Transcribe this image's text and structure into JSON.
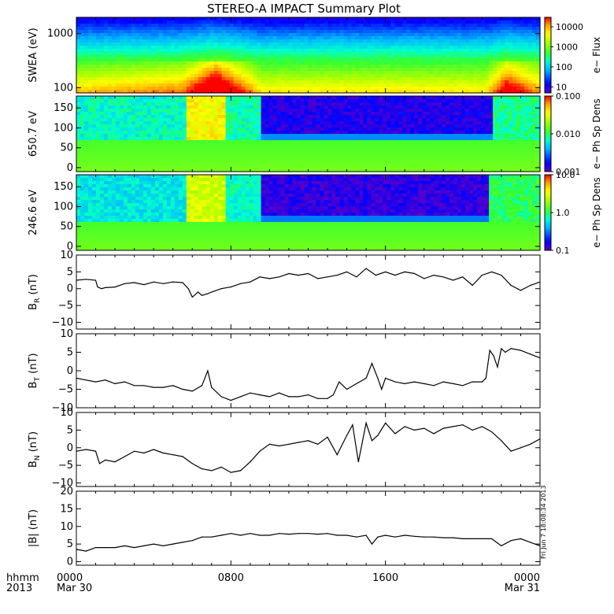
{
  "title": "STEREO-A IMPACT Summary Plot",
  "footer": {
    "left_top": "hhmm",
    "left_bottom": "2013",
    "date_start": "Mar 30",
    "date_end": "Mar 31"
  },
  "timestamp": "Fri Jun  7 18:08:34 2013",
  "colors": {
    "line": "#000000",
    "axis": "#000000"
  },
  "chart_data": [
    {
      "type": "heatmap",
      "id": "swea",
      "ylabel": "SWEA (eV)",
      "yscale": "log",
      "ylim": [
        80,
        2000
      ],
      "yticks": [
        100,
        1000
      ],
      "ytick_labels": [
        "100",
        "1000"
      ],
      "colorbar": {
        "label": "e− Flux",
        "scale": "log",
        "range": [
          5,
          30000
        ],
        "ticks": [
          10,
          100,
          1000,
          10000
        ],
        "tick_labels": [
          "10",
          "100",
          "1000",
          "10000"
        ]
      },
      "x_profile": [
        [
          0,
          1.0
        ],
        [
          5.5,
          1.1
        ],
        [
          7.2,
          1.45
        ],
        [
          8.4,
          1.2
        ],
        [
          9.6,
          0.95
        ],
        [
          21.2,
          0.95
        ],
        [
          22.3,
          1.3
        ],
        [
          24,
          1.05
        ]
      ]
    },
    {
      "type": "heatmap",
      "id": "pad650",
      "ylabel": "650.7 eV",
      "ylim": [
        -10,
        180
      ],
      "yticks": [
        0,
        50,
        100,
        150
      ],
      "ytick_labels": [
        "0",
        "50",
        "100",
        "150"
      ],
      "colorbar": {
        "label": "e− Ph Sp Dens",
        "scale": "log",
        "range": [
          0.001,
          0.1
        ],
        "ticks": [
          0.001,
          0.01,
          0.1
        ],
        "tick_labels": [
          "0.001",
          "0.010",
          "0.100"
        ]
      },
      "regions": [
        {
          "x": [
            0,
            5.6
          ],
          "level": 0.42
        },
        {
          "x": [
            5.6,
            7.8
          ],
          "level": 0.78
        },
        {
          "x": [
            7.8,
            9.5
          ],
          "level": 0.44
        },
        {
          "x": [
            9.5,
            21.6
          ],
          "level": 0.08
        },
        {
          "x": [
            21.6,
            24
          ],
          "level": 0.46
        }
      ]
    },
    {
      "type": "heatmap",
      "id": "pad246",
      "ylabel": "246.6 eV",
      "ylim": [
        -10,
        180
      ],
      "yticks": [
        0,
        50,
        100,
        150
      ],
      "ytick_labels": [
        "0",
        "50",
        "100",
        "150"
      ],
      "colorbar": {
        "label": "e− Ph Sp Dens",
        "scale": "log",
        "range": [
          0.1,
          10
        ],
        "ticks": [
          0.1,
          1,
          10
        ],
        "tick_labels": [
          "0.1",
          "1.0",
          "10.0"
        ]
      },
      "regions": [
        {
          "x": [
            0,
            5.6
          ],
          "level": 0.38
        },
        {
          "x": [
            5.6,
            7.8
          ],
          "level": 0.72
        },
        {
          "x": [
            7.8,
            9.5
          ],
          "level": 0.42
        },
        {
          "x": [
            9.5,
            21.4
          ],
          "level": 0.06
        },
        {
          "x": [
            21.4,
            24
          ],
          "level": 0.5
        }
      ]
    },
    {
      "type": "line",
      "id": "br",
      "ylabel": "B",
      "ylabel_sub": "R",
      "ylabel_unit": " (nT)",
      "ylim": [
        -12,
        10
      ],
      "yticks": [
        -10,
        -5,
        0,
        5,
        10
      ],
      "ytick_labels": [
        "−10",
        "−5",
        "0",
        "5",
        "10"
      ],
      "x": [
        0,
        0.5,
        1.0,
        1.1,
        1.3,
        1.5,
        2.0,
        2.5,
        3.0,
        3.5,
        4.0,
        4.5,
        5.0,
        5.5,
        5.8,
        6.0,
        6.3,
        6.5,
        6.8,
        7.0,
        7.5,
        8.0,
        8.5,
        9.0,
        9.5,
        10.0,
        10.5,
        11.0,
        11.5,
        12.0,
        12.5,
        13.0,
        13.5,
        14.0,
        14.5,
        15.0,
        15.5,
        16.0,
        16.5,
        17.0,
        17.5,
        18.0,
        18.5,
        19.0,
        19.5,
        20.0,
        20.5,
        21.0,
        21.5,
        22.0,
        22.5,
        23.0,
        23.5,
        24.0
      ],
      "y": [
        2.5,
        2.8,
        2.5,
        0.5,
        0.0,
        0.3,
        0.5,
        1.5,
        1.8,
        1.2,
        2.0,
        1.5,
        2.0,
        1.8,
        0.0,
        -2.5,
        -1.0,
        -2.0,
        -1.5,
        -1.0,
        0.0,
        0.5,
        1.5,
        2.0,
        3.5,
        3.0,
        3.5,
        4.5,
        4.0,
        4.5,
        3.0,
        3.5,
        4.0,
        5.0,
        3.5,
        6.0,
        4.0,
        5.0,
        4.0,
        5.0,
        4.5,
        3.0,
        4.0,
        3.5,
        2.5,
        3.5,
        1.0,
        4.0,
        5.0,
        4.0,
        1.0,
        -0.5,
        1.0,
        2.0
      ]
    },
    {
      "type": "line",
      "id": "bt",
      "ylabel": "B",
      "ylabel_sub": "T",
      "ylabel_unit": " (nT)",
      "ylim": [
        -10,
        10
      ],
      "yticks": [
        -10,
        -5,
        0,
        5,
        10
      ],
      "ytick_labels": [
        "−10",
        "−5",
        "0",
        "5",
        "10"
      ],
      "x": [
        0,
        0.5,
        1.0,
        1.5,
        2.0,
        2.5,
        3.0,
        3.5,
        4.0,
        4.5,
        5.0,
        5.5,
        6.0,
        6.5,
        6.8,
        7.0,
        7.5,
        8.0,
        8.5,
        9.0,
        9.5,
        10.0,
        10.5,
        11.0,
        11.5,
        12.0,
        12.5,
        13.0,
        13.3,
        13.6,
        13.8,
        14.0,
        14.5,
        15.0,
        15.3,
        15.6,
        15.8,
        16.0,
        16.5,
        17.0,
        17.5,
        18.0,
        18.5,
        19.0,
        19.5,
        20.0,
        20.5,
        21.0,
        21.2,
        21.4,
        21.6,
        21.8,
        22.0,
        22.2,
        22.5,
        23.0,
        23.5,
        24.0
      ],
      "y": [
        -2.0,
        -2.5,
        -3.0,
        -2.5,
        -3.5,
        -3.0,
        -4.0,
        -4.0,
        -4.5,
        -4.5,
        -4.0,
        -5.0,
        -5.5,
        -4.0,
        0.0,
        -4.5,
        -7.0,
        -8.0,
        -7.0,
        -6.0,
        -6.5,
        -7.0,
        -6.0,
        -7.0,
        -7.0,
        -6.5,
        -7.5,
        -7.5,
        -6.5,
        -3.0,
        -4.0,
        -5.0,
        -3.5,
        -2.0,
        2.0,
        -2.0,
        -5.0,
        -2.0,
        -3.0,
        -3.5,
        -3.0,
        -3.5,
        -4.0,
        -3.0,
        -3.5,
        -4.0,
        -3.0,
        -3.0,
        -2.0,
        5.5,
        4.0,
        1.0,
        6.0,
        5.0,
        6.0,
        5.5,
        4.5,
        3.5
      ]
    },
    {
      "type": "line",
      "id": "bn",
      "ylabel": "B",
      "ylabel_sub": "N",
      "ylabel_unit": " (nT)",
      "ylim": [
        -11,
        10
      ],
      "yticks": [
        -10,
        -5,
        0,
        5,
        10
      ],
      "ytick_labels": [
        "−10",
        "−5",
        "0",
        "5",
        "10"
      ],
      "x": [
        0,
        0.5,
        1.0,
        1.2,
        1.5,
        2.0,
        2.5,
        3.0,
        3.5,
        4.0,
        4.5,
        5.0,
        5.5,
        6.0,
        6.5,
        7.0,
        7.5,
        8.0,
        8.5,
        9.0,
        9.5,
        10.0,
        10.5,
        11.0,
        11.5,
        12.0,
        12.5,
        13.0,
        13.5,
        14.0,
        14.3,
        14.6,
        15.0,
        15.3,
        15.6,
        16.0,
        16.5,
        17.0,
        17.5,
        18.0,
        18.5,
        19.0,
        19.5,
        20.0,
        20.5,
        21.0,
        21.5,
        22.0,
        22.5,
        23.0,
        23.5,
        24.0
      ],
      "y": [
        -1.0,
        -0.5,
        -1.0,
        -4.5,
        -3.5,
        -4.0,
        -2.5,
        -1.0,
        -1.5,
        -0.5,
        -1.5,
        -2.0,
        -2.5,
        -4.5,
        -6.0,
        -6.5,
        -5.5,
        -7.0,
        -6.5,
        -4.0,
        -1.0,
        1.0,
        0.5,
        1.0,
        1.5,
        2.0,
        1.0,
        3.0,
        -2.0,
        3.5,
        6.5,
        -4.0,
        7.0,
        2.0,
        3.5,
        7.0,
        4.0,
        6.0,
        5.0,
        5.5,
        4.0,
        5.5,
        6.0,
        6.5,
        5.0,
        6.0,
        4.5,
        2.0,
        -1.0,
        0.0,
        1.0,
        2.5
      ]
    },
    {
      "type": "line",
      "id": "bmag",
      "ylabel": "|B| (nT)",
      "ylim": [
        -1,
        20
      ],
      "yticks": [
        0,
        5,
        10,
        15,
        20
      ],
      "ytick_labels": [
        "0",
        "5",
        "10",
        "15",
        "20"
      ],
      "x": [
        0,
        0.5,
        1.0,
        1.5,
        2.0,
        2.5,
        3.0,
        3.5,
        4.0,
        4.5,
        5.0,
        5.5,
        6.0,
        6.5,
        7.0,
        7.5,
        8.0,
        8.5,
        9.0,
        9.5,
        10.0,
        10.5,
        11.0,
        11.5,
        12.0,
        12.5,
        13.0,
        13.5,
        14.0,
        14.5,
        15.0,
        15.3,
        15.6,
        16.0,
        16.5,
        17.0,
        17.5,
        18.0,
        18.5,
        19.0,
        19.5,
        20.0,
        20.5,
        21.0,
        21.5,
        22.0,
        22.5,
        23.0,
        23.5,
        24.0
      ],
      "y": [
        3.5,
        3.0,
        4.0,
        4.0,
        4.0,
        4.5,
        4.0,
        4.5,
        5.0,
        4.5,
        5.0,
        5.5,
        6.0,
        7.0,
        7.0,
        7.5,
        8.0,
        7.5,
        8.0,
        7.5,
        7.5,
        8.0,
        7.8,
        8.0,
        8.0,
        7.8,
        8.0,
        7.5,
        7.5,
        7.0,
        7.5,
        5.0,
        7.0,
        7.5,
        7.0,
        7.5,
        7.2,
        7.0,
        7.0,
        6.8,
        6.8,
        6.5,
        6.5,
        6.5,
        6.5,
        4.5,
        6.0,
        6.5,
        5.5,
        4.5
      ]
    }
  ],
  "xaxis": {
    "range": [
      0,
      24
    ],
    "ticks": [
      0,
      8,
      16,
      24
    ],
    "tick_labels": [
      "0000",
      "0800",
      "1600",
      "0000"
    ],
    "minor_step": 1
  }
}
